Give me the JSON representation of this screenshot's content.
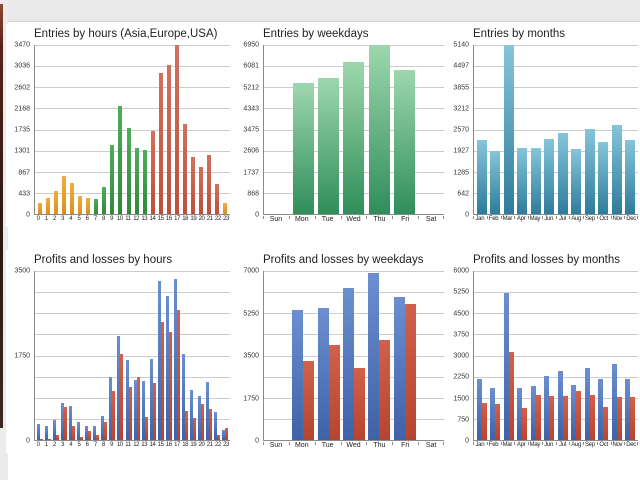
{
  "window": {
    "topbar_color": "#e9e9e9",
    "edge_strip_color": "#55241a"
  },
  "chart_data": [
    {
      "type": "bar",
      "title": "Entries by hours (Asia,Europe,USA)",
      "xlabel": "hours",
      "categories": [
        "0",
        "1",
        "2",
        "3",
        "4",
        "5",
        "6",
        "7",
        "8",
        "9",
        "10",
        "11",
        "12",
        "13",
        "14",
        "15",
        "16",
        "17",
        "18",
        "19",
        "20",
        "21",
        "22",
        "23"
      ],
      "values": [
        225,
        325,
        470,
        775,
        630,
        370,
        325,
        305,
        550,
        1410,
        2225,
        1775,
        1365,
        1305,
        1695,
        2895,
        3060,
        3470,
        1855,
        1165,
        960,
        1205,
        610,
        225
      ],
      "per_bar_colors": [
        "asia",
        "asia",
        "asia",
        "asia",
        "asia",
        "asia",
        "asia",
        "europe",
        "europe",
        "europe",
        "europe",
        "europe",
        "europe",
        "europe",
        "usa",
        "usa",
        "usa",
        "usa",
        "usa",
        "usa",
        "usa",
        "usa",
        "usa",
        "asia"
      ],
      "palette": {
        "asia": [
          "#f0ae3c",
          "#dd8f1e"
        ],
        "europe": [
          "#4fae59",
          "#2e8a3a"
        ],
        "usa": [
          "#d2705e",
          "#bf4f3b"
        ]
      },
      "ymax": 3470,
      "ylim": [
        0,
        3470
      ],
      "ytick_labels": [
        "3470",
        "3036",
        "2602",
        "2168",
        "1735",
        "1301",
        "867",
        "433",
        "0"
      ],
      "grid": "on"
    },
    {
      "type": "bar",
      "title": "Entries by weekdays",
      "xlabel": "weekdays",
      "categories": [
        "Sun",
        "Mon",
        "Tue",
        "Wed",
        "Thu",
        "Fri",
        "Sat"
      ],
      "values": [
        0,
        5370,
        5600,
        6260,
        6950,
        5905,
        0
      ],
      "color": [
        "#9ed7ae",
        "#2f8e59"
      ],
      "ymax": 6950,
      "ylim": [
        0,
        6950
      ],
      "ytick_labels": [
        "6950",
        "6081",
        "5212",
        "4343",
        "3475",
        "2606",
        "1737",
        "868",
        "0"
      ],
      "grid": "on"
    },
    {
      "type": "bar",
      "title": "Entries by months",
      "xlabel": "months",
      "categories": [
        "Jan",
        "Feb",
        "Mar",
        "Apr",
        "May",
        "Jun",
        "Jul",
        "Aug",
        "Sep",
        "Oct",
        "Nov",
        "Dec"
      ],
      "values": [
        2255,
        1930,
        5140,
        2000,
        2010,
        2290,
        2460,
        1980,
        2580,
        2180,
        2715,
        2255
      ],
      "color": [
        "#86c5da",
        "#2d7c9b"
      ],
      "ymax": 5140,
      "ylim": [
        0,
        5140
      ],
      "ytick_labels": [
        "5140",
        "4497",
        "3855",
        "3212",
        "2570",
        "1927",
        "1285",
        "642",
        "0"
      ],
      "grid": "on"
    },
    {
      "type": "grouped-bar",
      "title": "Profits and losses by hours",
      "xlabel": "hours",
      "categories": [
        "0",
        "1",
        "2",
        "3",
        "4",
        "5",
        "6",
        "7",
        "8",
        "9",
        "10",
        "11",
        "12",
        "13",
        "14",
        "15",
        "16",
        "17",
        "18",
        "19",
        "20",
        "21",
        "22",
        "23"
      ],
      "series": [
        {
          "name": "profit",
          "color": [
            "#6b8fd0",
            "#3f62a8"
          ],
          "values": [
            340,
            300,
            420,
            765,
            705,
            380,
            280,
            280,
            505,
            1305,
            2150,
            1650,
            1245,
            1225,
            1670,
            3300,
            2980,
            3340,
            1790,
            1045,
            905,
            1205,
            585,
            200
          ]
        },
        {
          "name": "loss",
          "color": [
            "#d2604a",
            "#b64430"
          ],
          "values": [
            30,
            30,
            100,
            685,
            300,
            60,
            180,
            100,
            380,
            1005,
            1790,
            1105,
            1305,
            480,
            1185,
            2435,
            2230,
            2695,
            600,
            460,
            745,
            645,
            100,
            240
          ]
        }
      ],
      "ymax": 3500,
      "ylim": [
        0,
        3500
      ],
      "ytick_labels": [
        "3500",
        "",
        "",
        "",
        "1750",
        "",
        "",
        "",
        "0"
      ],
      "grid": "on"
    },
    {
      "type": "grouped-bar",
      "title": "Profits and losses by weekdays",
      "xlabel": "weekdays",
      "categories": [
        "Sun",
        "Mon",
        "Tue",
        "Wed",
        "Thu",
        "Fri",
        "Sat"
      ],
      "series": [
        {
          "name": "profit",
          "color": [
            "#6b8fd0",
            "#3f62a8"
          ],
          "values": [
            0,
            5375,
            5455,
            6290,
            6900,
            5915,
            0
          ]
        },
        {
          "name": "loss",
          "color": [
            "#d2604a",
            "#b64430"
          ],
          "values": [
            0,
            3290,
            3915,
            3000,
            4125,
            5625,
            0
          ]
        }
      ],
      "ymax": 7000,
      "ylim": [
        0,
        7000
      ],
      "ytick_labels": [
        "7000",
        "",
        "5250",
        "",
        "3500",
        "",
        "1750",
        "",
        "0"
      ],
      "grid": "on"
    },
    {
      "type": "grouped-bar",
      "title": "Profits and losses by months",
      "xlabel": "months",
      "categories": [
        "Jan",
        "Feb",
        "Mar",
        "Apr",
        "May",
        "Jun",
        "Jul",
        "Aug",
        "Sep",
        "Oct",
        "Nov",
        "Dec"
      ],
      "series": [
        {
          "name": "profit",
          "color": [
            "#6b8fd0",
            "#3f62a8"
          ],
          "values": [
            2150,
            1835,
            5230,
            1835,
            1905,
            2260,
            2435,
            1940,
            2540,
            2150,
            2715,
            2150
          ]
        },
        {
          "name": "loss",
          "color": [
            "#d2604a",
            "#b64430"
          ],
          "values": [
            1300,
            1270,
            3140,
            1130,
            1590,
            1555,
            1555,
            1730,
            1590,
            1165,
            1520,
            1510
          ]
        }
      ],
      "ymax": 6000,
      "ylim": [
        0,
        6000
      ],
      "ytick_labels": [
        "6000",
        "5250",
        "4500",
        "3750",
        "3000",
        "2250",
        "1500",
        "750",
        "0"
      ],
      "grid": "on"
    }
  ]
}
